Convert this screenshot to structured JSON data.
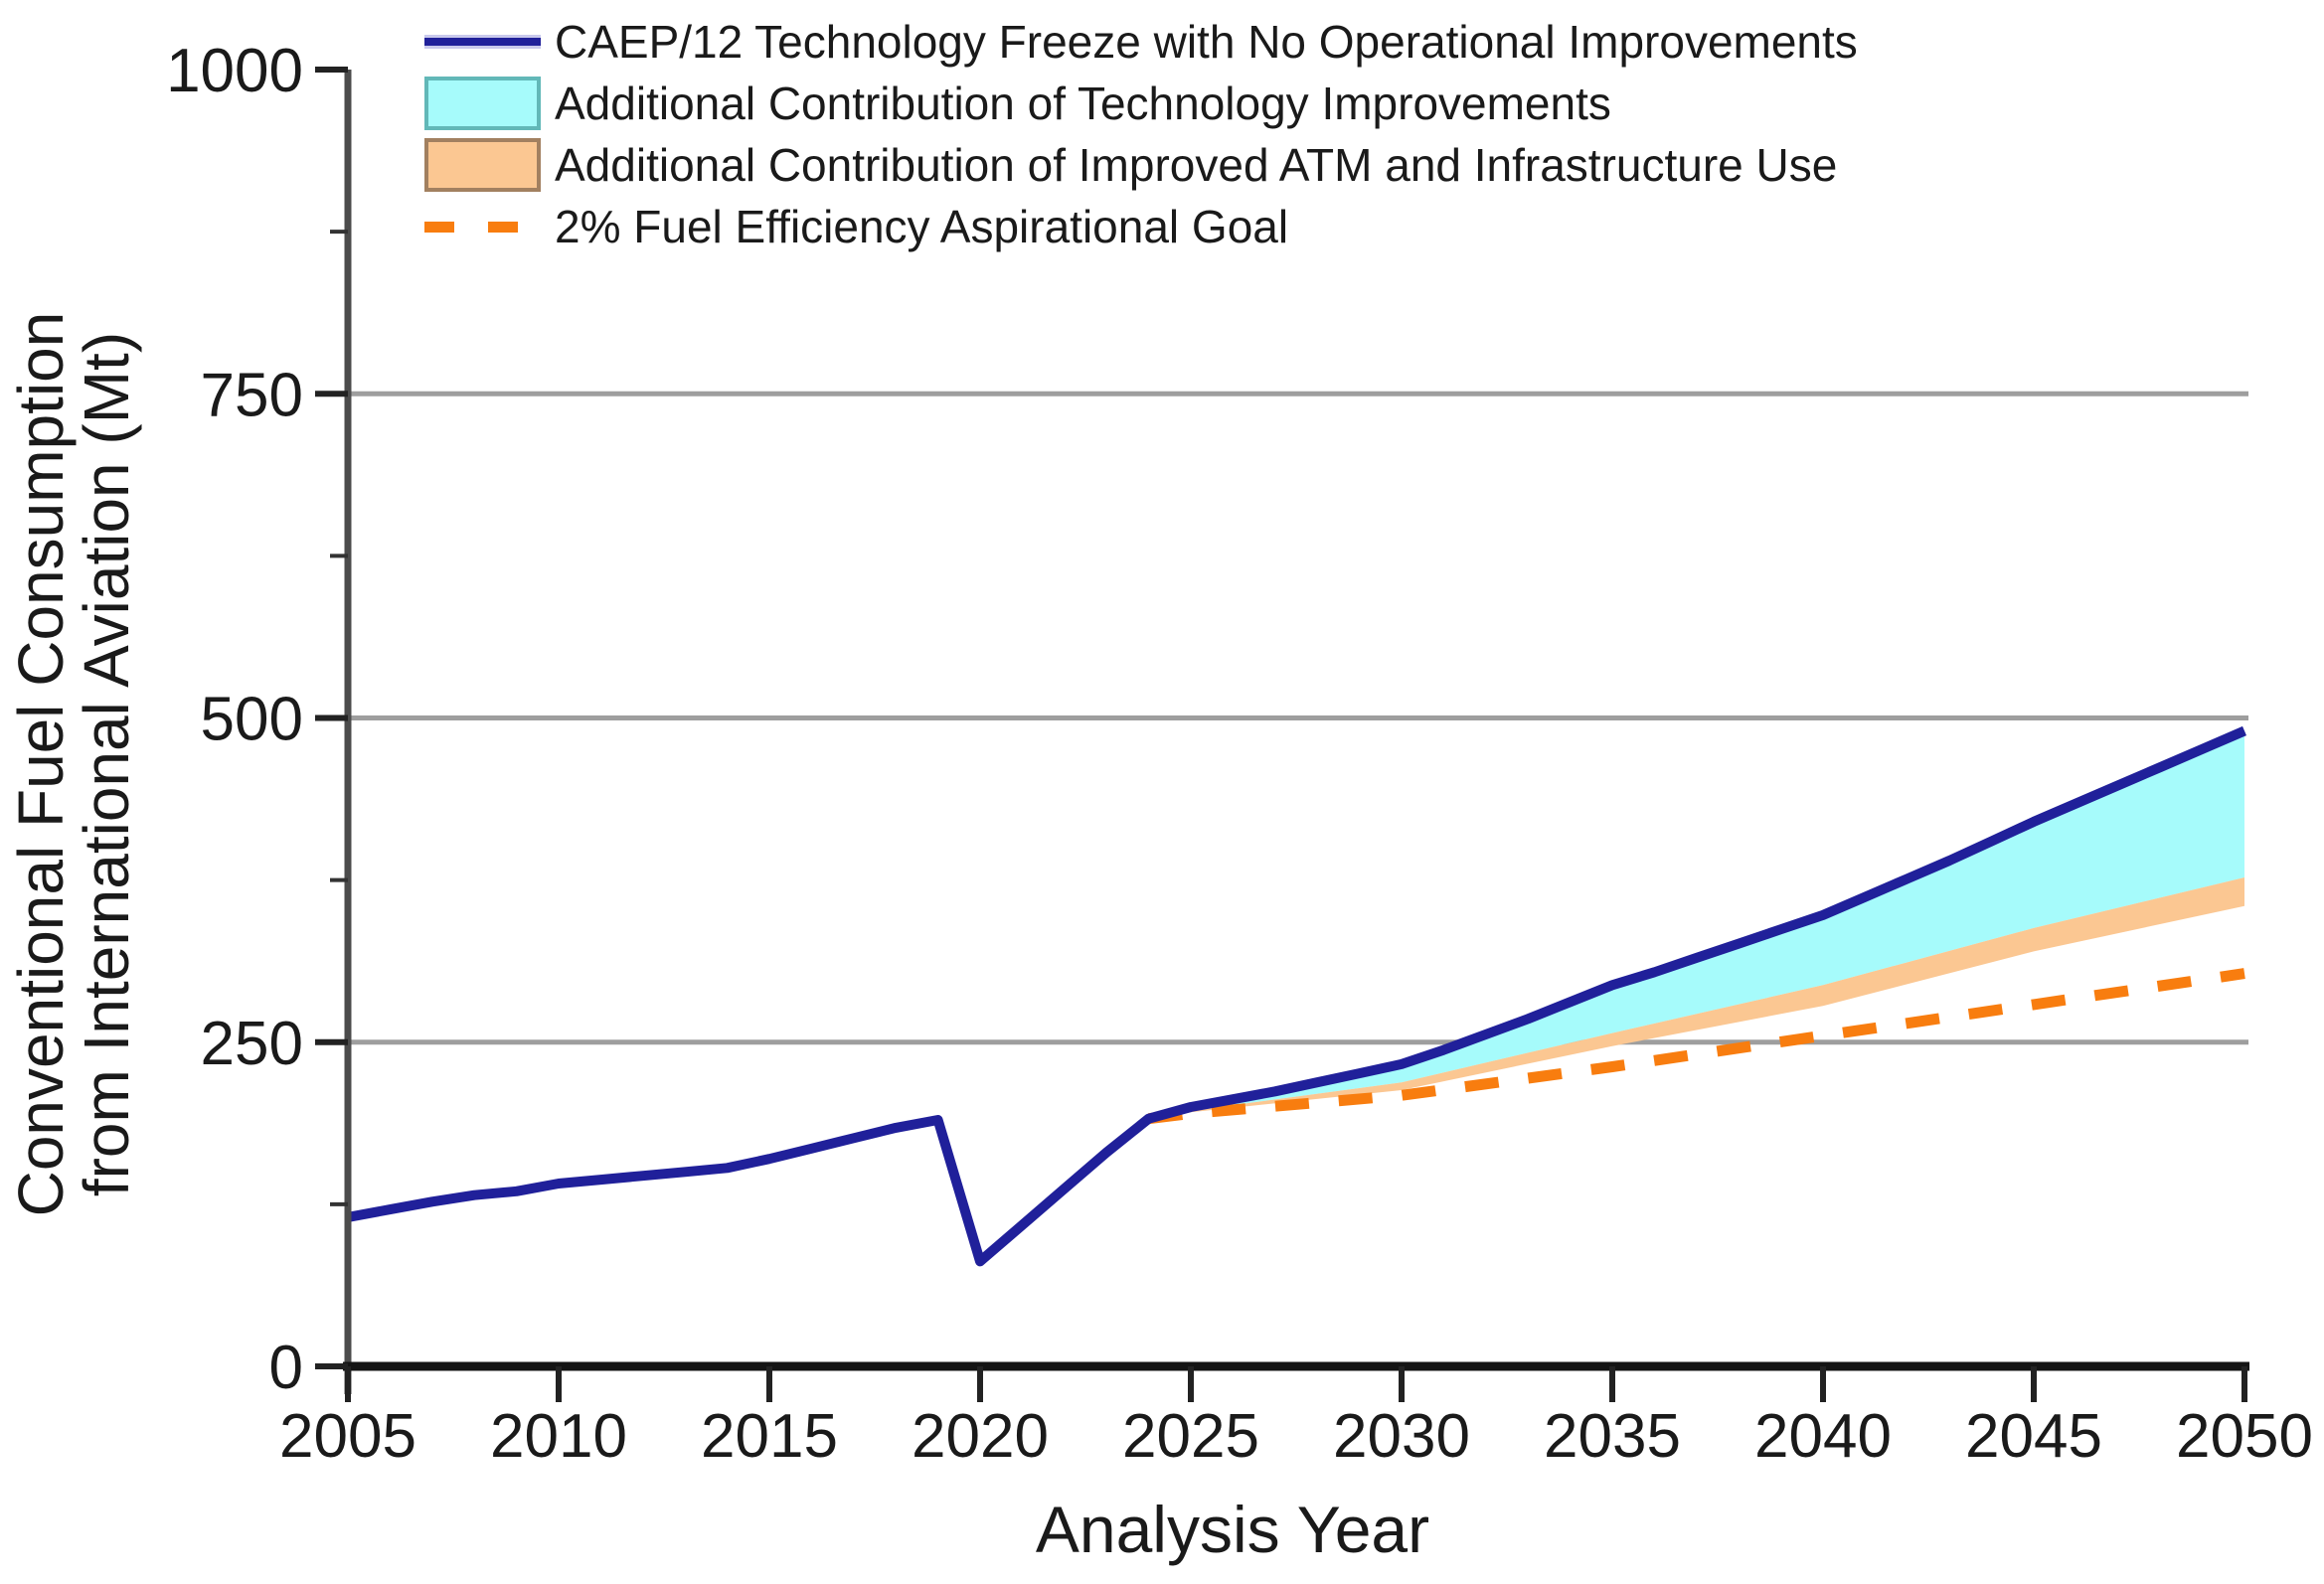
{
  "chart_data": {
    "type": "area",
    "title": "",
    "xlabel": "Analysis Year",
    "ylabel": "Conventional Fuel Consumption from International Aviation (Mt)",
    "ylabel_line1": "Conventional Fuel Consumption",
    "ylabel_line2": "from International Aviation (Mt)",
    "xlim": [
      2005,
      2050
    ],
    "ylim": [
      0,
      1000
    ],
    "x_ticks": [
      2005,
      2010,
      2015,
      2020,
      2025,
      2030,
      2035,
      2040,
      2045,
      2050
    ],
    "y_ticks": [
      0,
      250,
      500,
      750,
      1000
    ],
    "y_minor_ticks": [
      125,
      375,
      625,
      875
    ],
    "gridline_values": [
      250,
      500,
      750
    ],
    "grid_on": true,
    "legend_position": "top-left",
    "colors": {
      "freeze_line": "#20209a",
      "freeze_line_halo": "#c9c9ec",
      "tech_fill": "#a6fbfb",
      "tech_border": "#62b8b8",
      "atm_fill": "#fbc792",
      "atm_border": "#a28060",
      "goal_line": "#f87d0f",
      "gridline": "#9e9e9e",
      "y_spine": "#4c4c4c",
      "x_spine": "#141414",
      "text": "#1a1a1a"
    },
    "series": [
      {
        "name": "CAEP/12 Technology Freeze with No Operational Improvements",
        "type": "line",
        "color": "#20209a",
        "points": [
          [
            2005,
            115
          ],
          [
            2006,
            121
          ],
          [
            2007,
            127
          ],
          [
            2008,
            132
          ],
          [
            2009,
            135
          ],
          [
            2010,
            141
          ],
          [
            2011,
            144
          ],
          [
            2012,
            147
          ],
          [
            2013,
            150
          ],
          [
            2014,
            153
          ],
          [
            2015,
            160
          ],
          [
            2016,
            168
          ],
          [
            2017,
            176
          ],
          [
            2018,
            184
          ],
          [
            2019,
            190
          ],
          [
            2020,
            81
          ],
          [
            2021,
            109
          ],
          [
            2022,
            137
          ],
          [
            2023,
            165
          ],
          [
            2024,
            191
          ],
          [
            2025,
            200
          ],
          [
            2026,
            206
          ],
          [
            2027,
            212
          ],
          [
            2028,
            219
          ],
          [
            2029,
            226
          ],
          [
            2030,
            233
          ],
          [
            2031,
            244
          ],
          [
            2032,
            256
          ],
          [
            2033,
            268
          ],
          [
            2034,
            281
          ],
          [
            2035,
            294
          ],
          [
            2036,
            304
          ],
          [
            2037,
            315
          ],
          [
            2038,
            326
          ],
          [
            2039,
            337
          ],
          [
            2040,
            348
          ],
          [
            2041,
            362
          ],
          [
            2042,
            376
          ],
          [
            2043,
            390
          ],
          [
            2044,
            405
          ],
          [
            2045,
            420
          ],
          [
            2046,
            434
          ],
          [
            2047,
            448
          ],
          [
            2048,
            462
          ],
          [
            2049,
            476
          ],
          [
            2050,
            490
          ]
        ]
      },
      {
        "name": "Additional Contribution of Technology Improvements",
        "type": "area",
        "fill": "#a6fbfb",
        "border": "#62b8b8",
        "note": "area between freeze line (upper) and this lower boundary",
        "points": [
          [
            2024,
            191
          ],
          [
            2025,
            197
          ],
          [
            2030,
            219
          ],
          [
            2035,
            257
          ],
          [
            2040,
            294
          ],
          [
            2045,
            338
          ],
          [
            2050,
            377
          ]
        ]
      },
      {
        "name": "Additional Contribution of Improved ATM and Infrastructure Use",
        "type": "area",
        "fill": "#fbc792",
        "border": "#a28060",
        "note": "area between technology line (upper) and this lower boundary",
        "points": [
          [
            2024,
            191
          ],
          [
            2025,
            196
          ],
          [
            2030,
            213
          ],
          [
            2035,
            247
          ],
          [
            2040,
            278
          ],
          [
            2045,
            320
          ],
          [
            2050,
            355
          ]
        ]
      },
      {
        "name": "2% Fuel Efficiency Aspirational Goal",
        "type": "dashed-line",
        "color": "#f87d0f",
        "points": [
          [
            2024,
            191
          ],
          [
            2025,
            195
          ],
          [
            2030,
            209
          ],
          [
            2035,
            231
          ],
          [
            2040,
            255
          ],
          [
            2045,
            279
          ],
          [
            2050,
            303
          ]
        ]
      }
    ]
  }
}
